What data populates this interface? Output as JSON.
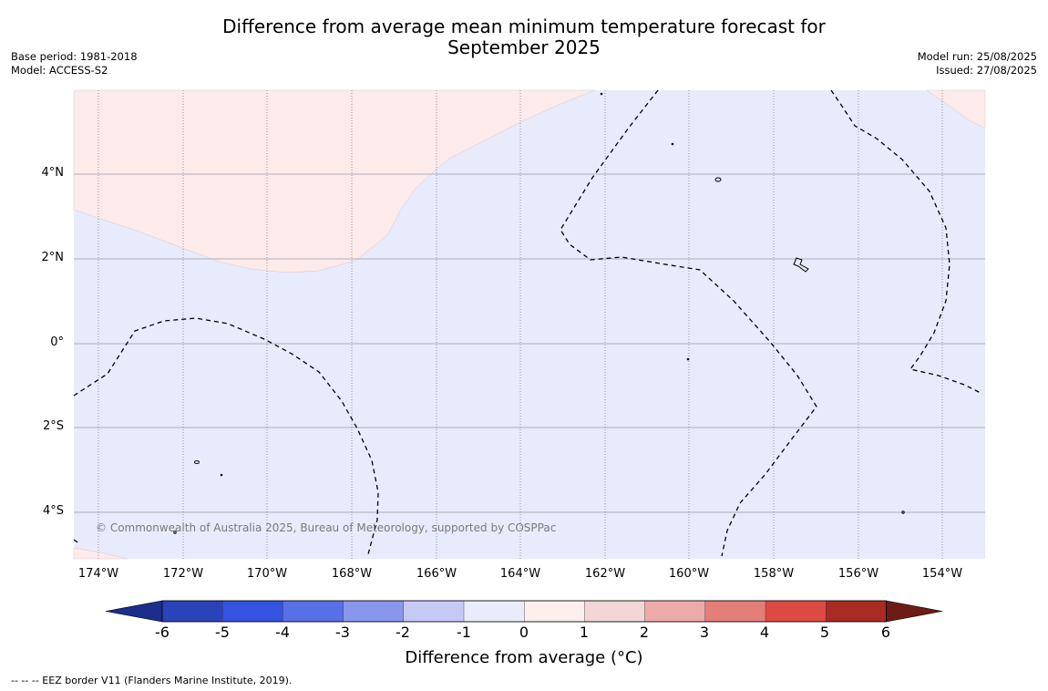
{
  "title_line1": "Difference from average mean minimum temperature forecast for",
  "title_line2": "September 2025",
  "meta_left": [
    "Base period: 1981-2018",
    "Model: ACCESS-S2"
  ],
  "meta_right": [
    "Model run: 25/08/2025",
    "Issued: 27/08/2025"
  ],
  "copyright": "© Commonwealth of Australia 2025, Bureau of Meteorology, supported by COSPPac",
  "lat_ticks": [
    "4°N",
    "2°N",
    "0°",
    "2°S",
    "4°S"
  ],
  "lon_ticks": [
    "174°W",
    "172°W",
    "170°W",
    "168°W",
    "166°W",
    "164°W",
    "162°W",
    "160°W",
    "158°W",
    "156°W",
    "154°W"
  ],
  "colorbar": {
    "ticks": [
      "-6",
      "-5",
      "-4",
      "-3",
      "-2",
      "-1",
      "0",
      "1",
      "2",
      "3",
      "4",
      "5",
      "6"
    ],
    "colors": [
      "#1c2e8c",
      "#2a43b8",
      "#3353e0",
      "#5870e6",
      "#8897ec",
      "#c4c9f6",
      "#ebecfb",
      "#fcefee",
      "#f3d6d6",
      "#eeaaaa",
      "#e47e78",
      "#dd4a42",
      "#aa2a24",
      "#6e1a16"
    ],
    "label": "Difference from average ($^\\circ$C)",
    "label_display": "Difference from average (°C)"
  },
  "footer": "--  --  -- EEZ border V11 (Flanders Marine Institute, 2019).",
  "map_fill": {
    "cool": "#e8ebfb",
    "warm": "#fcebea"
  }
}
